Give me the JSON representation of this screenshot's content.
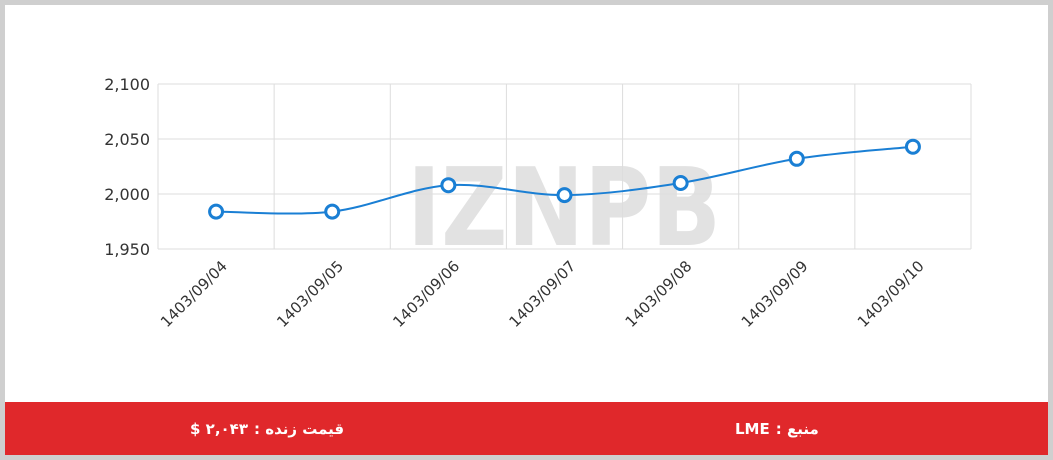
{
  "watermark": "IZNPB",
  "footer": {
    "live_price_label": "قیمت زنده :",
    "live_price_value": "۲,۰۴۳ $",
    "source_label": "منبع :",
    "source_value": "LME"
  },
  "colors": {
    "line": "#1a7fd4",
    "footer_bg": "#e0282b",
    "grid": "#dddddd"
  },
  "chart_data": {
    "type": "line",
    "title": "",
    "xlabel": "",
    "ylabel": "",
    "categories": [
      "1403/09/04",
      "1403/09/05",
      "1403/09/06",
      "1403/09/07",
      "1403/09/08",
      "1403/09/09",
      "1403/09/10"
    ],
    "values": [
      1984,
      1984,
      2008,
      1999,
      2010,
      2032,
      2043
    ],
    "ylim": [
      1950,
      2100
    ],
    "yticks": [
      1950,
      2000,
      2050,
      2100
    ],
    "ytick_labels": [
      "1,950",
      "2,000",
      "2,050",
      "2,100"
    ],
    "grid": true,
    "legend": "none"
  }
}
